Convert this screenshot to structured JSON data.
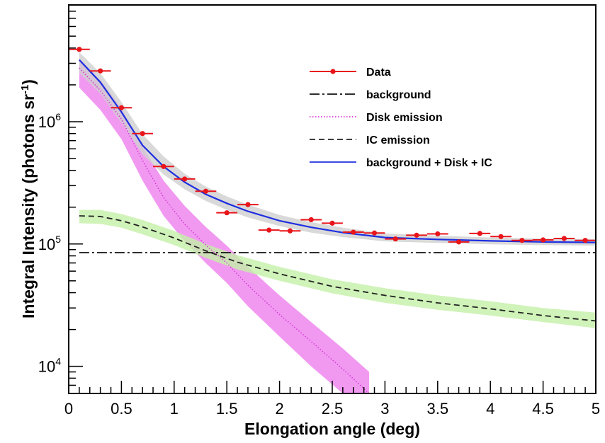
{
  "chart_data": {
    "type": "scatter",
    "xlabel": "Elongation angle (deg)",
    "ylabel": "Integral Intensity (photons sr",
    "ylabel_sup": "-1",
    "ylabel_close": ")",
    "xlim": [
      0,
      5
    ],
    "ylim": [
      6000,
      9000000
    ],
    "yscale": "log",
    "x_ticks": [
      0,
      0.5,
      1,
      1.5,
      2,
      2.5,
      3,
      3.5,
      4,
      4.5,
      5
    ],
    "x_tick_labels": [
      "0",
      "0.5",
      "1",
      "1.5",
      "2",
      "2.5",
      "3",
      "3.5",
      "4",
      "4.5",
      "5"
    ],
    "y_tick_labels": [
      {
        "value": 10000,
        "base": "10",
        "exp": "4"
      },
      {
        "value": 100000,
        "base": "10",
        "exp": "5"
      },
      {
        "value": 1000000,
        "base": "10",
        "exp": "6"
      }
    ],
    "legend_position": "top-right",
    "series": [
      {
        "name": "Data",
        "kind": "points",
        "color": "#e8151b",
        "x": [
          0.1,
          0.3,
          0.5,
          0.7,
          0.9,
          1.1,
          1.3,
          1.5,
          1.7,
          1.9,
          2.1,
          2.3,
          2.5,
          2.7,
          2.9,
          3.1,
          3.3,
          3.5,
          3.7,
          3.9,
          4.1,
          4.3,
          4.5,
          4.7,
          4.9
        ],
        "y": [
          3900000,
          2600000,
          1300000,
          800000,
          430000,
          340000,
          270000,
          180000,
          210000,
          130000,
          128000,
          158000,
          148000,
          125000,
          123000,
          110000,
          118000,
          121000,
          104000,
          122000,
          115000,
          107000,
          108000,
          111000,
          107000
        ],
        "x_err": 0.1
      },
      {
        "name": "background",
        "kind": "line",
        "style": "dash-dot",
        "color": "#111111",
        "x": [
          0.1,
          5.0
        ],
        "y": [
          85000,
          85000
        ]
      },
      {
        "name": "Disk emission",
        "kind": "line",
        "style": "dotted",
        "color": "#d63bd6",
        "band_color": "#ee80ee",
        "x": [
          0.1,
          0.3,
          0.5,
          0.7,
          0.9,
          1.1,
          1.3,
          1.5,
          1.7,
          2.0,
          2.3,
          2.6,
          2.85
        ],
        "y": [
          2750000,
          1800000,
          1050000,
          480000,
          240000,
          145000,
          98000,
          70000,
          46000,
          26500,
          16000,
          9500,
          6000
        ],
        "band_lower": [
          1900000,
          1250000,
          720000,
          330000,
          170000,
          105000,
          70000,
          48000,
          31000,
          17500,
          10000,
          6000,
          3800
        ],
        "band_upper": [
          3300000,
          2200000,
          1300000,
          620000,
          330000,
          205000,
          138000,
          97000,
          65000,
          38000,
          23000,
          14000,
          9000
        ]
      },
      {
        "name": "IC emission",
        "kind": "line",
        "style": "dashed",
        "color": "#222222",
        "band_color": "#c4f0a8",
        "x": [
          0.1,
          0.3,
          0.5,
          0.7,
          1.0,
          1.3,
          1.6,
          2.0,
          2.5,
          3.0,
          3.5,
          4.0,
          4.5,
          5.0
        ],
        "y": [
          170000,
          168000,
          155000,
          138000,
          112000,
          88000,
          71000,
          57000,
          45000,
          38000,
          33000,
          29500,
          26000,
          23500
        ],
        "band_lower": [
          148000,
          146000,
          136000,
          120000,
          98000,
          77000,
          62000,
          50000,
          39500,
          33000,
          29000,
          26000,
          23000,
          20500
        ],
        "band_upper": [
          190000,
          190000,
          176000,
          157000,
          128000,
          100000,
          81000,
          65000,
          51500,
          43500,
          38000,
          34000,
          30000,
          27500
        ]
      },
      {
        "name": "background + Disk + IC",
        "kind": "line",
        "style": "solid",
        "color": "#1e2fe0",
        "band_color": "#cfcfcf",
        "x": [
          0.1,
          0.3,
          0.5,
          0.7,
          0.9,
          1.1,
          1.3,
          1.5,
          1.7,
          2.0,
          2.3,
          2.6,
          3.0,
          3.5,
          4.0,
          4.5,
          5.0
        ],
        "y": [
          3200000,
          2100000,
          1200000,
          640000,
          430000,
          320000,
          255000,
          215000,
          185000,
          155000,
          137000,
          124000,
          113000,
          109000,
          106000,
          104000,
          103000
        ],
        "band_lower": [
          2500000,
          1700000,
          980000,
          540000,
          370000,
          280000,
          225000,
          190000,
          165000,
          140000,
          124000,
          114000,
          105000,
          102000,
          99500,
          98000,
          97000
        ],
        "band_upper": [
          3700000,
          2500000,
          1450000,
          790000,
          520000,
          375000,
          295000,
          245000,
          210000,
          173000,
          151000,
          136000,
          122000,
          117000,
          113000,
          111000,
          109500
        ]
      }
    ]
  }
}
